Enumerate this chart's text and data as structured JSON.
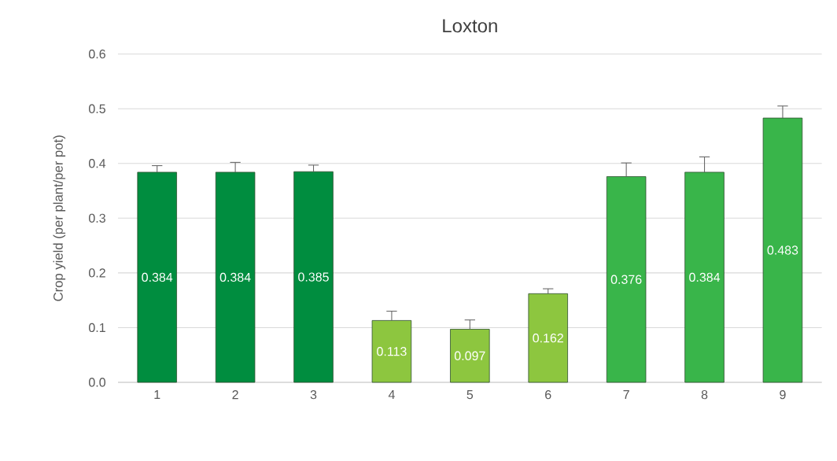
{
  "chart_data": {
    "type": "bar",
    "title": "Loxton",
    "ylabel": "Crop yield (per plant/per pot)",
    "categories": [
      "1",
      "2",
      "3",
      "4",
      "5",
      "6",
      "7",
      "8",
      "9"
    ],
    "values": [
      0.384,
      0.384,
      0.385,
      0.113,
      0.097,
      0.162,
      0.376,
      0.384,
      0.483
    ],
    "errors": [
      0.012,
      0.018,
      0.012,
      0.017,
      0.017,
      0.009,
      0.025,
      0.028,
      0.022
    ],
    "colors": [
      "#008d3f",
      "#008d3f",
      "#008d3f",
      "#8dc63f",
      "#8dc63f",
      "#8dc63f",
      "#39b54a",
      "#39b54a",
      "#39b54a"
    ],
    "ylim": [
      0,
      0.6
    ],
    "yticks": [
      {
        "value": 0,
        "label": "0.0"
      },
      0.1,
      0.2,
      0.3,
      0.4,
      0.5,
      0.6
    ],
    "grid": "y",
    "data_labels": true
  }
}
